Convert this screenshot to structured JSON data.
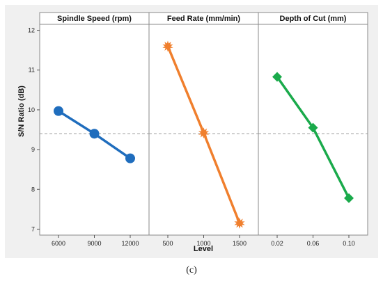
{
  "chart_data": {
    "type": "line",
    "caption": "(c)",
    "xlabel": "Level",
    "ylabel": "S/N Ratio (dB)",
    "ylim": [
      6.85,
      12.15
    ],
    "yticks": [
      7,
      8,
      9,
      10,
      11,
      12
    ],
    "reference_line": 9.4,
    "grid": false,
    "panels": [
      {
        "title": "Spindle Speed (rpm)",
        "categories": [
          "6000",
          "9000",
          "12000"
        ],
        "values": [
          9.97,
          9.4,
          8.78
        ],
        "color": "#1f6dbd",
        "marker": "circle"
      },
      {
        "title": "Feed Rate (mm/min)",
        "categories": [
          "500",
          "1000",
          "1500"
        ],
        "values": [
          11.6,
          9.42,
          7.15
        ],
        "color": "#f07f2d",
        "marker": "star"
      },
      {
        "title": "Depth of Cut (mm)",
        "categories": [
          "0.02",
          "0.06",
          "0.10"
        ],
        "values": [
          10.83,
          9.55,
          7.78
        ],
        "color": "#1aaa4b",
        "marker": "diamond"
      }
    ]
  }
}
